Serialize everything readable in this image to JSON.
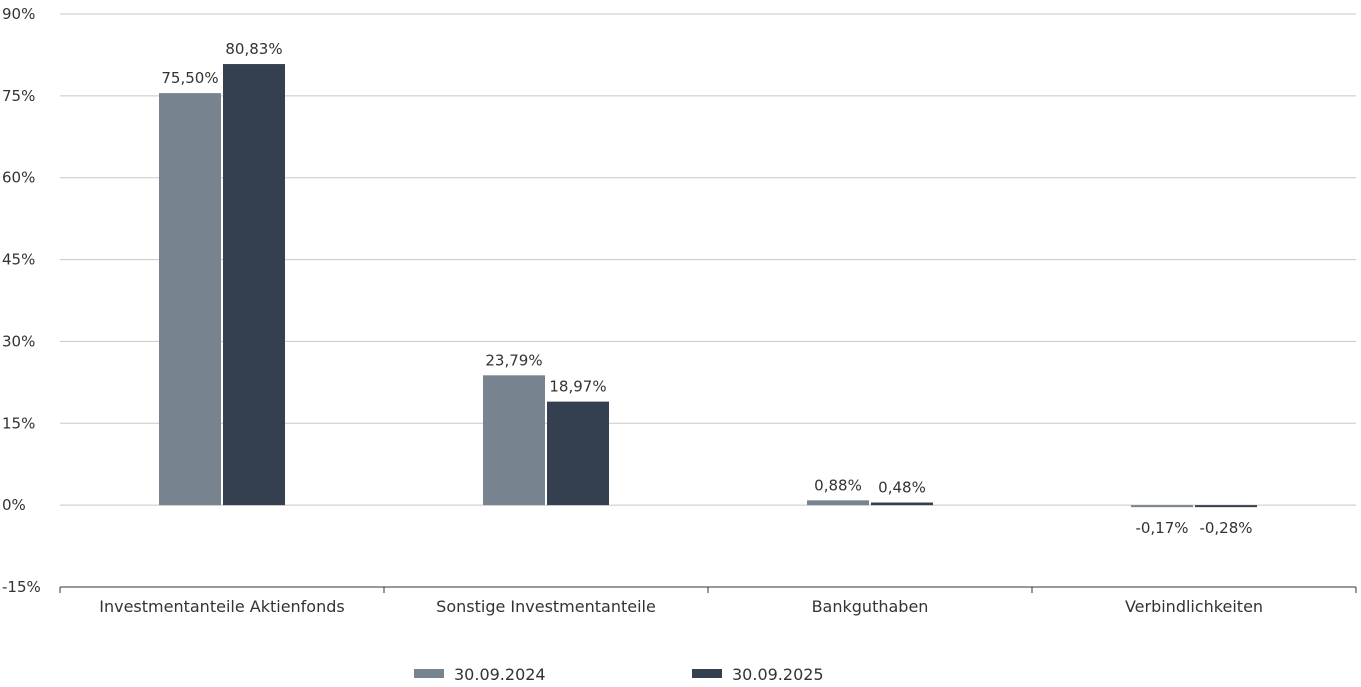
{
  "chart_data": {
    "type": "bar",
    "categories": [
      "Investmentanteile Aktienfonds",
      "Sonstige Investmentanteile",
      "Bankguthaben",
      "Verbindlichkeiten"
    ],
    "series": [
      {
        "name": "30.09.2024",
        "color": "#77838f",
        "values": [
          75.5,
          23.79,
          0.88,
          -0.17
        ],
        "labels": [
          "75,50%",
          "23,79%",
          "0,88%",
          "-0,17%"
        ]
      },
      {
        "name": "30.09.2025",
        "color": "#344050",
        "values": [
          80.83,
          18.97,
          0.48,
          -0.28
        ],
        "labels": [
          "80,83%",
          "18,97%",
          "0,48%",
          "-0,28%"
        ]
      }
    ],
    "ylim": [
      -15,
      90
    ],
    "yticks": [
      90,
      75,
      60,
      45,
      30,
      15,
      0,
      -15
    ],
    "ytick_labels": [
      "90%",
      "75%",
      "60%",
      "45%",
      "30%",
      "15%",
      "0%",
      "-15%"
    ],
    "grid": true,
    "legend_position": "bottom-center",
    "title": "",
    "xlabel": "",
    "ylabel": ""
  }
}
